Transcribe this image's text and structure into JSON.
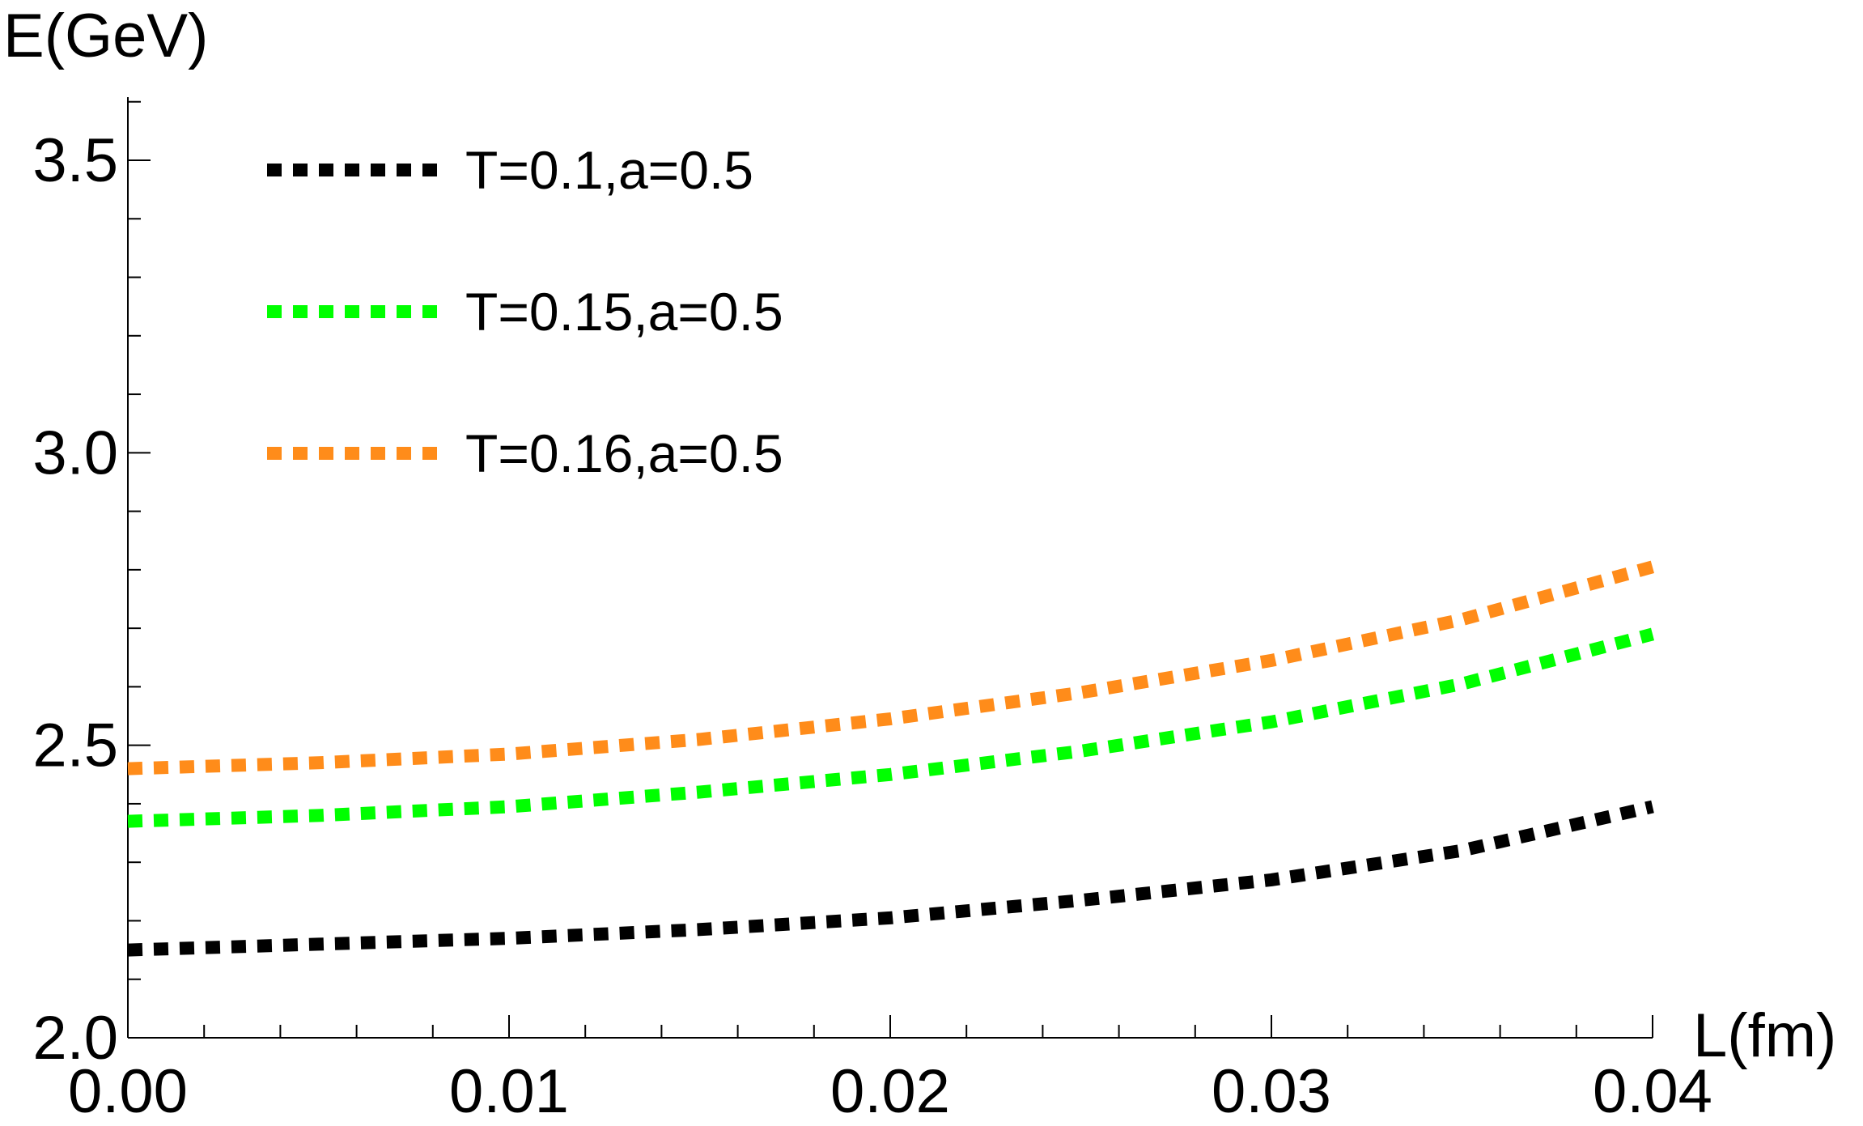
{
  "chart_data": {
    "type": "line",
    "xlabel": "L(fm)",
    "ylabel": "E(GeV)",
    "xlim": [
      0,
      0.04
    ],
    "ylim": [
      2.0,
      3.6
    ],
    "x_ticks": [
      "0.00",
      "0.01",
      "0.02",
      "0.03",
      "0.04"
    ],
    "y_ticks": [
      "2.0",
      "2.5",
      "3.0",
      "3.5"
    ],
    "line_style": "dotted",
    "legend_position": "top-left",
    "grid": false,
    "x": [
      0.0,
      0.005,
      0.01,
      0.015,
      0.02,
      0.025,
      0.03,
      0.035,
      0.04
    ],
    "series": [
      {
        "name": "T=0.1,a=0.5",
        "color": "#000000",
        "values": [
          2.15,
          2.16,
          2.17,
          2.185,
          2.205,
          2.235,
          2.27,
          2.32,
          2.395
        ]
      },
      {
        "name": "T=0.15,a=0.5",
        "color": "#00ff00",
        "values": [
          2.37,
          2.38,
          2.395,
          2.42,
          2.45,
          2.49,
          2.54,
          2.605,
          2.69
        ]
      },
      {
        "name": "T=0.16,a=0.5",
        "color": "#ff8c1a",
        "values": [
          2.46,
          2.47,
          2.485,
          2.51,
          2.545,
          2.59,
          2.645,
          2.715,
          2.805
        ]
      }
    ]
  }
}
